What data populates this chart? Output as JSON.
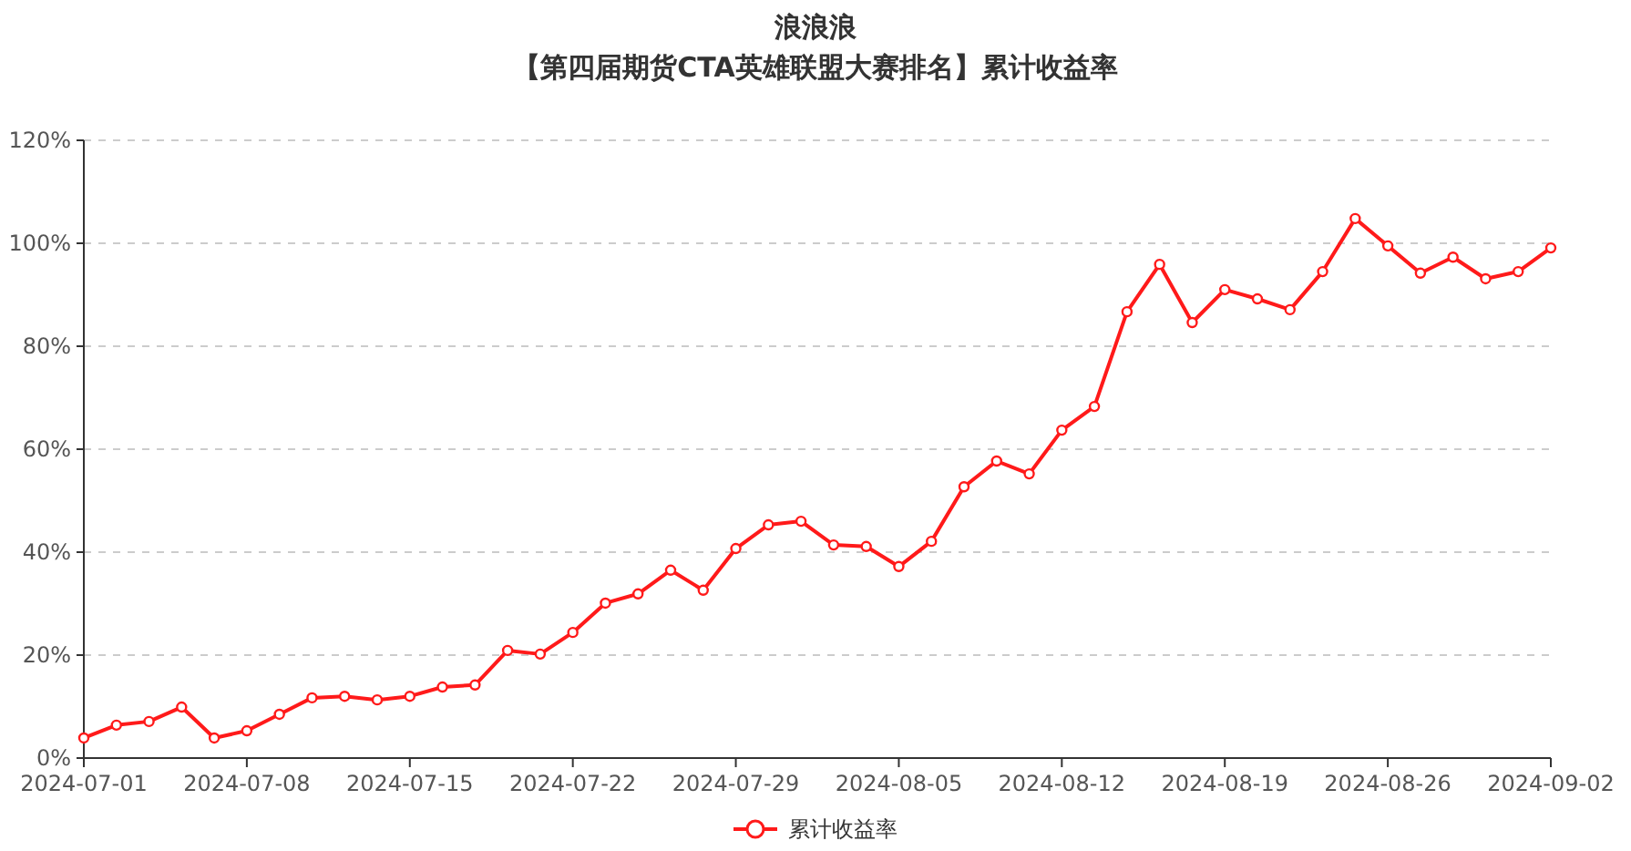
{
  "chart_data": {
    "type": "line",
    "title": "浪浪浪",
    "subtitle": "【第四届期货CTA英雄联盟大赛排名】累计收益率",
    "categories": [
      "2024-07-01",
      null,
      null,
      null,
      null,
      "2024-07-08",
      null,
      null,
      null,
      null,
      "2024-07-15",
      null,
      null,
      null,
      null,
      "2024-07-22",
      null,
      null,
      null,
      null,
      "2024-07-29",
      null,
      null,
      null,
      null,
      "2024-08-05",
      null,
      null,
      null,
      null,
      "2024-08-12",
      null,
      null,
      null,
      null,
      "2024-08-19",
      null,
      null,
      null,
      null,
      "2024-08-26",
      null,
      null,
      null,
      null,
      "2024-09-02"
    ],
    "series": [
      {
        "name": "累计收益率",
        "color": "#ff1a1a",
        "values": [
          3.9,
          6.4,
          7.1,
          9.9,
          3.9,
          5.3,
          8.5,
          11.7,
          12.0,
          11.3,
          12.0,
          13.8,
          14.2,
          20.9,
          20.2,
          24.4,
          30.1,
          31.9,
          36.5,
          32.6,
          40.7,
          45.3,
          46.0,
          41.4,
          41.1,
          37.2,
          42.1,
          52.7,
          57.7,
          55.2,
          63.7,
          68.3,
          86.7,
          95.9,
          84.6,
          91.0,
          89.2,
          87.1,
          94.5,
          104.8,
          99.5,
          94.2,
          97.3,
          93.1,
          94.5,
          99.1
        ]
      }
    ],
    "ylim": [
      0,
      120
    ],
    "yticks": [
      {
        "value": 0,
        "label": "0%"
      },
      {
        "value": 20,
        "label": "20%"
      },
      {
        "value": 40,
        "label": "40%"
      },
      {
        "value": 60,
        "label": "60%"
      },
      {
        "value": 80,
        "label": "80%"
      },
      {
        "value": 100,
        "label": "100%"
      },
      {
        "value": 120,
        "label": "120%"
      }
    ],
    "grid": "y",
    "legend": "bottom",
    "marker": "circle",
    "line_style": "solid"
  }
}
